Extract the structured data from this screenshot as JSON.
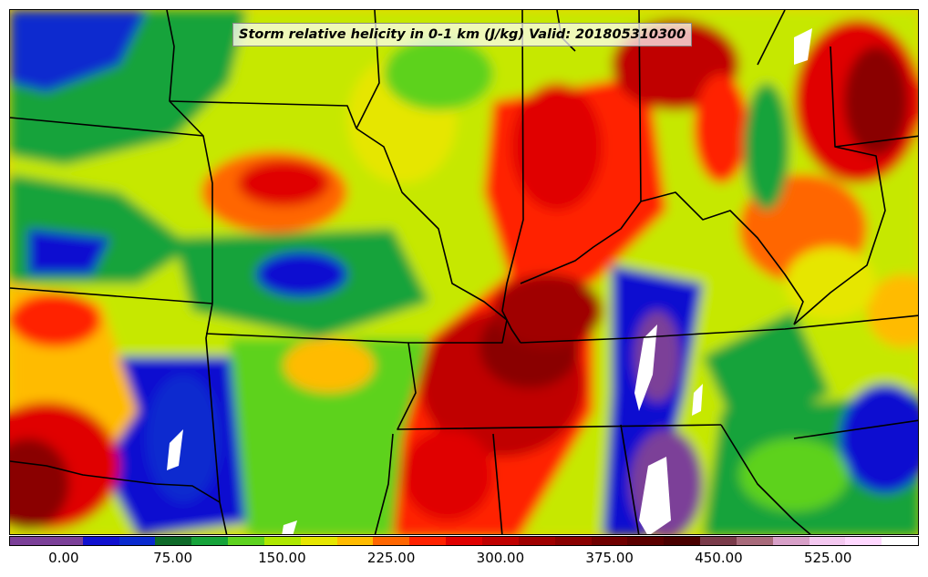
{
  "title": "Storm relative helicity in 0-1 km (J/kg) Valid: 201805310300",
  "colorbar": {
    "colors": [
      "#7b3f98",
      "#7b3f98",
      "#1010d0",
      "#0a2acf",
      "#0f6b2a",
      "#16a33a",
      "#5dd21e",
      "#aee800",
      "#e6e600",
      "#ffbb00",
      "#ff6600",
      "#ff2200",
      "#e00000",
      "#c00000",
      "#a00000",
      "#8a0000",
      "#700000",
      "#5c0000",
      "#4a0000",
      "#7a3b4a",
      "#a86a7a",
      "#d8a0c8",
      "#f4c8f0",
      "#ffd8ff",
      "#ffffff"
    ],
    "tick_labels": [
      "0.00",
      "75.00",
      "150.00",
      "225.00",
      "300.00",
      "375.00",
      "450.00",
      "525.00"
    ],
    "tick_values": [
      0,
      75,
      150,
      225,
      300,
      375,
      450,
      525
    ],
    "range": [
      -37.5,
      587.5
    ]
  },
  "map": {
    "field": "storm relative helicity 0-1 km",
    "units": "J/kg",
    "region": "Central/South-Central United States"
  }
}
